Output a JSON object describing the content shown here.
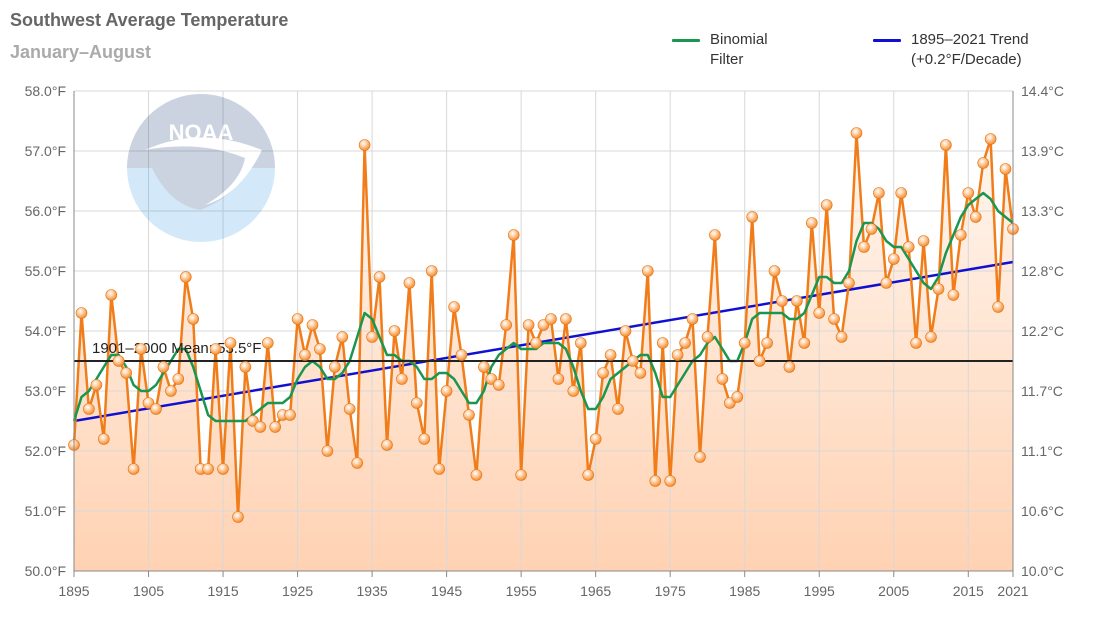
{
  "header": {
    "title": "Southwest Average Temperature",
    "subtitle": "January–August"
  },
  "legend": {
    "binomial_label_1": "Binomial",
    "binomial_label_2": "Filter",
    "trend_label_1": "1895–2021 Trend",
    "trend_label_2": "(+0.2°F/Decade)"
  },
  "logo": {
    "icon": "noaa-logo",
    "text": "NOAA"
  },
  "colors": {
    "annual": "#f07d1a",
    "binomial": "#1a9650",
    "trend": "#1010d0",
    "mean": "#222222",
    "fill_top": "#fff3ea",
    "fill_bottom": "#ffd2b3",
    "grid": "#d8d8d8"
  },
  "chart_data": {
    "type": "line",
    "title": "Southwest Average Temperature",
    "subtitle": "January–August",
    "ylim": [
      50.0,
      58.0
    ],
    "xlim": [
      1895,
      2021
    ],
    "y_ticks_f": [
      "50.0°F",
      "51.0°F",
      "52.0°F",
      "53.0°F",
      "54.0°F",
      "55.0°F",
      "56.0°F",
      "57.0°F",
      "58.0°F"
    ],
    "y_ticks_c": [
      "10.0°C",
      "10.6°C",
      "11.1°C",
      "11.7°C",
      "12.2°C",
      "12.8°C",
      "13.3°C",
      "13.9°C",
      "14.4°C"
    ],
    "x_ticks": [
      "1895",
      "1905",
      "1915",
      "1925",
      "1935",
      "1945",
      "1955",
      "1965",
      "1975",
      "1985",
      "1995",
      "2005",
      "2015",
      "2021"
    ],
    "grid": true,
    "legend_position": "top-right",
    "mean": {
      "label": "1901–2000 Mean: 53.5°F",
      "value": 53.5
    },
    "trend": {
      "name": "1895–2021 Trend",
      "start": [
        1895,
        52.5
      ],
      "end": [
        2021,
        55.15
      ]
    },
    "years_start": 1895,
    "annual_values": [
      52.1,
      54.3,
      52.7,
      53.1,
      52.2,
      54.6,
      53.5,
      53.3,
      51.7,
      53.7,
      52.8,
      52.7,
      53.4,
      53.0,
      53.2,
      54.9,
      54.2,
      51.7,
      51.7,
      53.7,
      51.7,
      53.8,
      50.9,
      53.4,
      52.5,
      52.4,
      53.8,
      52.4,
      52.6,
      52.6,
      54.2,
      53.6,
      54.1,
      53.7,
      52.0,
      53.4,
      53.9,
      52.7,
      51.8,
      57.1,
      53.9,
      54.9,
      52.1,
      54.0,
      53.2,
      54.8,
      52.8,
      52.2,
      55.0,
      51.7,
      53.0,
      54.4,
      53.6,
      52.6,
      51.6,
      53.4,
      53.2,
      53.1,
      54.1,
      55.6,
      51.6,
      54.1,
      53.8,
      54.1,
      54.2,
      53.2,
      54.2,
      53.0,
      53.8,
      51.6,
      52.2,
      53.3,
      53.6,
      52.7,
      54.0,
      53.5,
      53.3,
      55.0,
      51.5,
      53.8,
      51.5,
      53.6,
      53.8,
      54.2,
      51.9,
      53.9,
      55.6,
      53.2,
      52.8,
      52.9,
      53.8,
      55.9,
      53.5,
      53.8,
      55.0,
      54.5,
      53.4,
      54.5,
      53.8,
      55.8,
      54.3,
      56.1,
      54.2,
      53.9,
      54.8,
      57.3,
      55.4,
      55.7,
      56.3,
      54.8,
      55.2,
      56.3,
      55.4,
      53.8,
      55.5,
      53.9,
      54.7,
      57.1,
      54.6,
      55.6,
      56.3,
      55.9,
      56.8,
      57.2,
      54.4,
      56.7,
      55.7
    ],
    "binomial_values": [
      52.5,
      52.9,
      53.0,
      53.2,
      53.4,
      53.6,
      53.6,
      53.4,
      53.1,
      53.0,
      53.0,
      53.1,
      53.3,
      53.5,
      53.7,
      53.7,
      53.4,
      53.0,
      52.6,
      52.5,
      52.5,
      52.5,
      52.5,
      52.5,
      52.6,
      52.7,
      52.8,
      52.8,
      52.8,
      52.9,
      53.2,
      53.4,
      53.5,
      53.4,
      53.2,
      53.2,
      53.3,
      53.5,
      53.9,
      54.3,
      54.2,
      53.9,
      53.6,
      53.6,
      53.5,
      53.5,
      53.4,
      53.2,
      53.2,
      53.3,
      53.3,
      53.2,
      53.0,
      52.8,
      52.8,
      53.0,
      53.4,
      53.6,
      53.7,
      53.8,
      53.7,
      53.7,
      53.7,
      53.8,
      53.8,
      53.8,
      53.7,
      53.4,
      53.0,
      52.7,
      52.7,
      52.9,
      53.2,
      53.3,
      53.4,
      53.5,
      53.6,
      53.6,
      53.3,
      52.9,
      52.9,
      53.1,
      53.3,
      53.5,
      53.6,
      53.8,
      53.9,
      53.7,
      53.5,
      53.5,
      53.8,
      54.2,
      54.3,
      54.3,
      54.3,
      54.3,
      54.2,
      54.2,
      54.3,
      54.6,
      54.9,
      54.9,
      54.8,
      54.8,
      55.0,
      55.5,
      55.8,
      55.8,
      55.7,
      55.5,
      55.4,
      55.4,
      55.2,
      55.0,
      54.8,
      54.7,
      54.9,
      55.3,
      55.6,
      55.9,
      56.1,
      56.2,
      56.3,
      56.2,
      56.0,
      55.9,
      55.8
    ]
  }
}
